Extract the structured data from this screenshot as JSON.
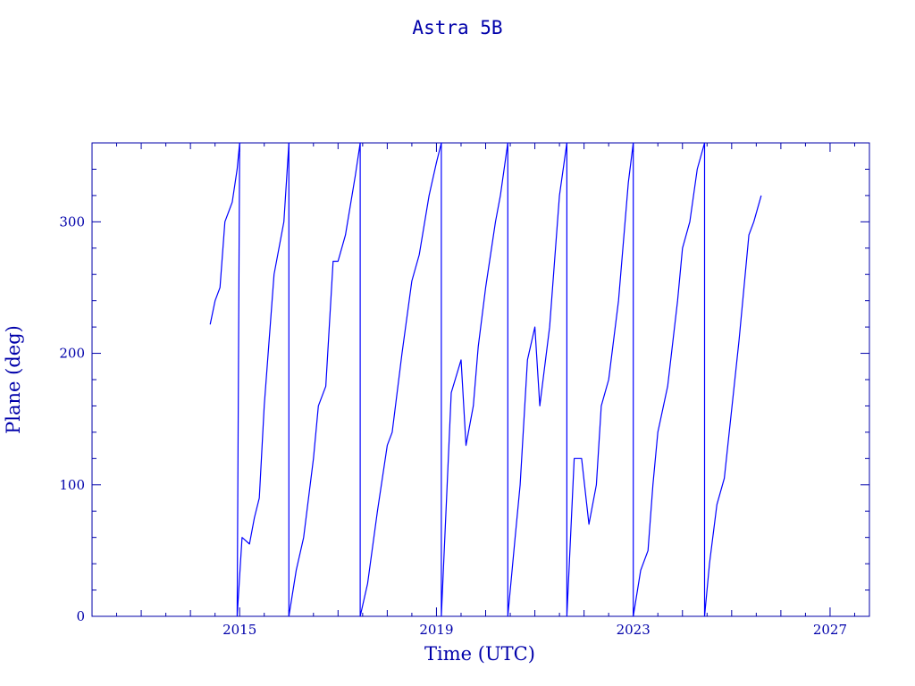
{
  "chart_data": {
    "type": "line",
    "title": "Astra 5B",
    "xlabel": "Time (UTC)",
    "ylabel": "Plane (deg)",
    "xlim": [
      2012.0,
      2027.8
    ],
    "ylim": [
      0,
      360
    ],
    "x_major_ticks": [
      2015,
      2019,
      2023,
      2027
    ],
    "x_tick_labels": [
      "2015",
      "2019",
      "2023",
      "2027"
    ],
    "y_major_ticks": [
      0,
      100,
      200,
      300
    ],
    "y_tick_labels": [
      "0",
      "100",
      "200",
      "300"
    ],
    "line_color": "#0000ff",
    "axis_color": "#0000aa",
    "grid": false,
    "legend": "none",
    "series": [
      {
        "values": [
          [
            2014.4,
            222
          ],
          [
            2014.5,
            240
          ],
          [
            2014.6,
            250
          ],
          [
            2014.7,
            300
          ],
          [
            2014.85,
            315
          ],
          [
            2014.95,
            340
          ],
          [
            2015.0,
            360
          ],
          [
            2014.95,
            0
          ],
          [
            2015.05,
            60
          ],
          [
            2015.2,
            55
          ],
          [
            2015.3,
            75
          ],
          [
            2015.4,
            90
          ],
          [
            2015.5,
            160
          ],
          [
            2015.7,
            260
          ],
          [
            2015.9,
            300
          ],
          [
            2016.0,
            360
          ],
          [
            2016.0,
            0
          ],
          [
            2016.15,
            35
          ],
          [
            2016.3,
            60
          ],
          [
            2016.5,
            120
          ],
          [
            2016.6,
            160
          ],
          [
            2016.75,
            175
          ],
          [
            2016.9,
            270
          ],
          [
            2017.0,
            270
          ],
          [
            2017.15,
            290
          ],
          [
            2017.35,
            335
          ],
          [
            2017.45,
            360
          ],
          [
            2017.45,
            0
          ],
          [
            2017.6,
            25
          ],
          [
            2017.8,
            80
          ],
          [
            2018.0,
            130
          ],
          [
            2018.1,
            140
          ],
          [
            2018.3,
            200
          ],
          [
            2018.5,
            255
          ],
          [
            2018.65,
            275
          ],
          [
            2018.85,
            320
          ],
          [
            2019.0,
            345
          ],
          [
            2019.1,
            360
          ],
          [
            2019.1,
            0
          ],
          [
            2019.3,
            170
          ],
          [
            2019.5,
            195
          ],
          [
            2019.6,
            130
          ],
          [
            2019.75,
            160
          ],
          [
            2019.85,
            205
          ],
          [
            2020.0,
            250
          ],
          [
            2020.2,
            300
          ],
          [
            2020.3,
            320
          ],
          [
            2020.45,
            360
          ],
          [
            2020.45,
            0
          ],
          [
            2020.6,
            60
          ],
          [
            2020.7,
            100
          ],
          [
            2020.85,
            195
          ],
          [
            2021.0,
            220
          ],
          [
            2021.1,
            160
          ],
          [
            2021.3,
            220
          ],
          [
            2021.4,
            270
          ],
          [
            2021.5,
            320
          ],
          [
            2021.65,
            360
          ],
          [
            2021.65,
            0
          ],
          [
            2021.8,
            120
          ],
          [
            2021.95,
            120
          ],
          [
            2022.1,
            70
          ],
          [
            2022.25,
            100
          ],
          [
            2022.35,
            160
          ],
          [
            2022.5,
            180
          ],
          [
            2022.7,
            240
          ],
          [
            2022.9,
            330
          ],
          [
            2023.0,
            360
          ],
          [
            2023.0,
            0
          ],
          [
            2023.15,
            35
          ],
          [
            2023.3,
            50
          ],
          [
            2023.4,
            100
          ],
          [
            2023.5,
            140
          ],
          [
            2023.7,
            175
          ],
          [
            2023.9,
            240
          ],
          [
            2024.0,
            280
          ],
          [
            2024.15,
            300
          ],
          [
            2024.3,
            340
          ],
          [
            2024.45,
            360
          ],
          [
            2024.45,
            0
          ],
          [
            2024.55,
            40
          ],
          [
            2024.7,
            85
          ],
          [
            2024.85,
            105
          ],
          [
            2024.95,
            140
          ],
          [
            2025.05,
            175
          ],
          [
            2025.15,
            210
          ],
          [
            2025.25,
            250
          ],
          [
            2025.35,
            290
          ],
          [
            2025.45,
            300
          ],
          [
            2025.6,
            320
          ]
        ]
      }
    ]
  }
}
